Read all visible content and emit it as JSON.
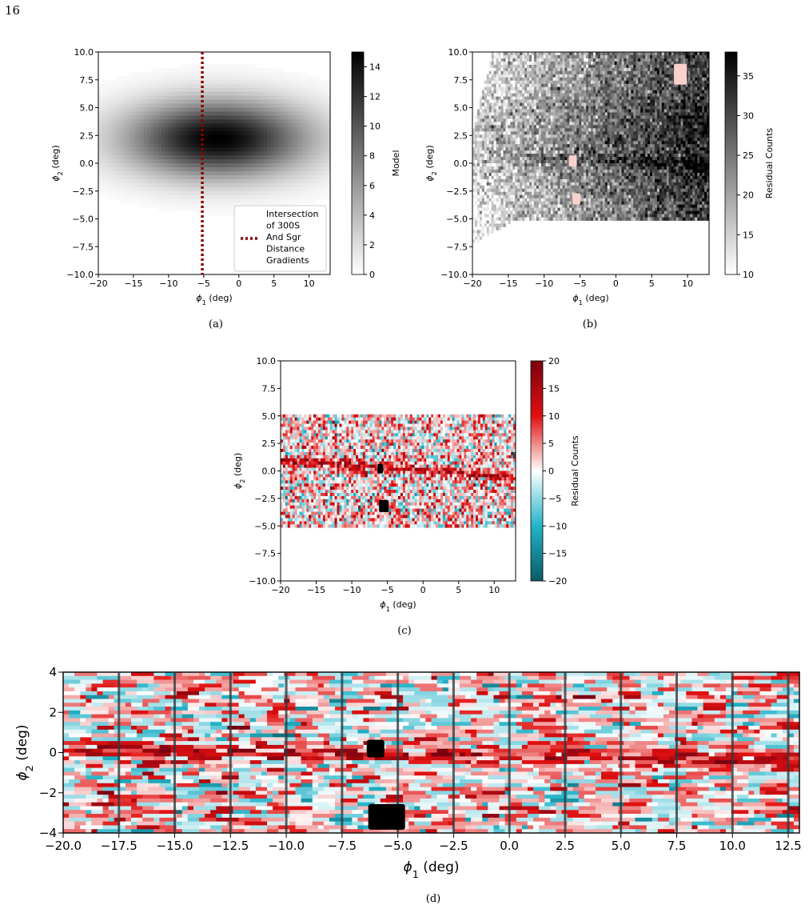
{
  "page": {
    "number": "16"
  },
  "chart_data": [
    {
      "panel": "(a)",
      "type": "heatmap",
      "caption": "(a)",
      "xlabel": "ϕ1 (deg)",
      "ylabel": "ϕ2 (deg)",
      "xlim": [
        -20,
        13
      ],
      "ylim": [
        -10,
        10
      ],
      "xticks": [
        "−20",
        "−15",
        "−10",
        "−5",
        "0",
        "5",
        "10"
      ],
      "yticks": [
        "10.0",
        "7.5",
        "5.0",
        "2.5",
        "0.0",
        "−2.5",
        "−5.0",
        "−7.5",
        "−10.0"
      ],
      "colorbar": {
        "label": "Model",
        "range": [
          0,
          15
        ],
        "ticks": [
          "0",
          "2",
          "4",
          "6",
          "8",
          "10",
          "12",
          "14"
        ],
        "colors": [
          "#ffffff",
          "#000000"
        ]
      },
      "model": {
        "center_phi1": -3,
        "center_phi2": 2.2,
        "sigma_phi1": 9,
        "sigma_phi2": 2.4,
        "peak": 15
      },
      "vline": {
        "x": -5.2,
        "color": "#8b0000",
        "style": "dotted"
      },
      "legend": {
        "position": "lower-right",
        "label_lines": [
          "Intersection",
          "of 300S",
          "And Sgr",
          "Distance",
          "Gradients"
        ]
      }
    },
    {
      "panel": "(b)",
      "type": "heatmap",
      "caption": "(b)",
      "xlabel": "ϕ1 (deg)",
      "ylabel": "ϕ2 (deg)",
      "xlim": [
        -20,
        13
      ],
      "ylim": [
        -10,
        10
      ],
      "xticks": [
        "−20",
        "−15",
        "−10",
        "−5",
        "0",
        "5",
        "10"
      ],
      "yticks": [
        "10.0",
        "7.5",
        "5.0",
        "2.5",
        "0.0",
        "−2.5",
        "−5.0",
        "−7.5",
        "−10.0"
      ],
      "colorbar": {
        "label": "Residual Counts",
        "range": [
          10,
          38
        ],
        "ticks": [
          "10",
          "15",
          "20",
          "25",
          "30",
          "35"
        ],
        "colors": [
          "#ffffff",
          "#000000"
        ]
      },
      "masked_regions": [
        {
          "phi1": 9,
          "phi2": 8,
          "color": "#f8d0cc"
        },
        {
          "phi1": -6,
          "phi2": 0.2,
          "color": "#f8d0cc"
        },
        {
          "phi1": -5.5,
          "phi2": -3.2,
          "color": "#f8d0cc"
        }
      ]
    },
    {
      "panel": "(c)",
      "type": "heatmap",
      "caption": "(c)",
      "xlabel": "ϕ1 (deg)",
      "ylabel": "ϕ2 (deg)",
      "xlim": [
        -20,
        13
      ],
      "ylim": [
        -10,
        10
      ],
      "xticks": [
        "−20",
        "−15",
        "−10",
        "−5",
        "0",
        "5",
        "10"
      ],
      "yticks": [
        "10.0",
        "7.5",
        "5.0",
        "2.5",
        "0.0",
        "−2.5",
        "−5.0",
        "−7.5",
        "−10.0"
      ],
      "colorbar": {
        "label": "Residual Counts",
        "range": [
          -20,
          20
        ],
        "ticks": [
          "−20",
          "−15",
          "−10",
          "−5",
          "0",
          "5",
          "10",
          "15",
          "20"
        ],
        "colors": [
          "#0a5b66",
          "#23b3c8",
          "#ffffff",
          "#e01010",
          "#7a0010"
        ]
      },
      "data_band": {
        "phi2": [
          -5,
          5
        ]
      },
      "stream": {
        "phi2_at_phi1_minus20": 1.0,
        "phi2_at_phi1_13": -0.6
      },
      "masked_regions": [
        {
          "phi1": -6,
          "phi2": 0.2,
          "color": "#000000"
        },
        {
          "phi1": -5.5,
          "phi2": -3.2,
          "color": "#000000"
        }
      ]
    },
    {
      "panel": "(d)",
      "type": "heatmap",
      "caption": "(d)",
      "xlabel": "ϕ1 (deg)",
      "ylabel": "ϕ2 (deg)",
      "xlim": [
        -20,
        13
      ],
      "ylim": [
        -4,
        4
      ],
      "xticks": [
        "−20.0",
        "−17.5",
        "−15.0",
        "−12.5",
        "−10.0",
        "−7.5",
        "−5.0",
        "−2.5",
        "0.0",
        "2.5",
        "5.0",
        "7.5",
        "10.0",
        "12.5"
      ],
      "yticks": [
        "4",
        "2",
        "0",
        "−2",
        "−4"
      ],
      "vlines": [
        -17.5,
        -15,
        -12.5,
        -10,
        -7.5,
        -5,
        -2.5,
        0,
        2.5,
        5,
        7.5,
        10,
        12.5
      ],
      "stream": {
        "phi2_at_phi1_minus20": 0.2,
        "phi2_at_phi1_13": -0.4
      },
      "masked_regions": [
        {
          "phi1": -6,
          "phi2": 0.2,
          "color": "#000000"
        },
        {
          "phi1": -5.5,
          "phi2": -3.2,
          "color": "#000000"
        }
      ]
    }
  ]
}
